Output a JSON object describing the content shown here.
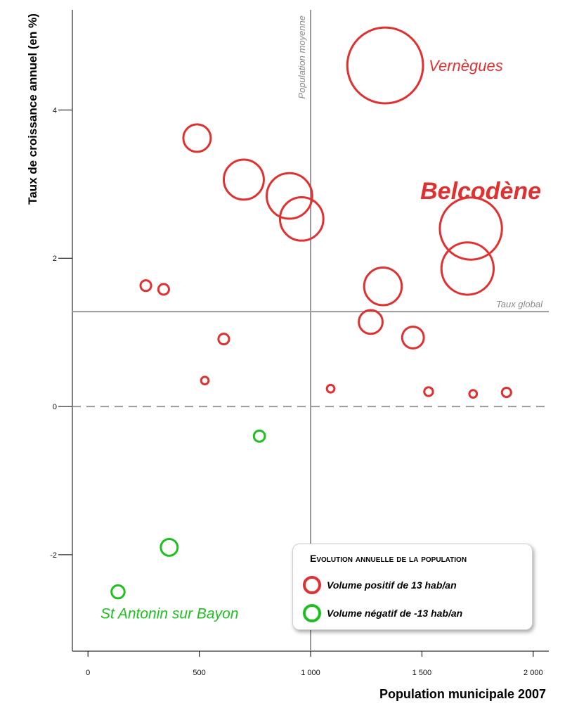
{
  "chart_data": {
    "type": "scatter",
    "title": "",
    "xlabel": "Population municipale 2007",
    "ylabel": "Taux de croissance annuel (en %)",
    "xlim": [
      -70,
      2070
    ],
    "ylim": [
      -3.3,
      5.35
    ],
    "xticks": [
      0,
      500,
      1000,
      1500,
      2000
    ],
    "xtick_labels": [
      "0",
      "500",
      "1 000",
      "1 500",
      "2 000"
    ],
    "yticks": [
      -2,
      0,
      2,
      4
    ],
    "ytick_labels": [
      "-2",
      "0",
      "2",
      "4"
    ],
    "grid": false,
    "reference_lines": {
      "mean_population": {
        "x": 1000,
        "label": "Population moyenne"
      },
      "global_rate": {
        "y": 1.28,
        "label": "Taux global"
      },
      "zero_line": {
        "y": 0
      }
    },
    "points": [
      {
        "x": 1335,
        "y": 4.6,
        "volume": 61,
        "sign": "positive",
        "label": "Vernègues"
      },
      {
        "x": 1720,
        "y": 2.4,
        "volume": 41,
        "sign": "positive",
        "label": "Belcodène"
      },
      {
        "x": 1705,
        "y": 1.86,
        "volume": 29,
        "sign": "positive"
      },
      {
        "x": 490,
        "y": 3.62,
        "volume": 8,
        "sign": "positive"
      },
      {
        "x": 700,
        "y": 3.06,
        "volume": 17,
        "sign": "positive"
      },
      {
        "x": 905,
        "y": 2.84,
        "volume": 22,
        "sign": "positive"
      },
      {
        "x": 960,
        "y": 2.53,
        "volume": 20,
        "sign": "positive"
      },
      {
        "x": 1325,
        "y": 1.62,
        "volume": 15,
        "sign": "positive"
      },
      {
        "x": 1270,
        "y": 1.14,
        "volume": 6,
        "sign": "positive"
      },
      {
        "x": 1460,
        "y": 0.93,
        "volume": 5,
        "sign": "positive"
      },
      {
        "x": 260,
        "y": 1.63,
        "volume": 1.2,
        "sign": "positive"
      },
      {
        "x": 340,
        "y": 1.58,
        "volume": 1.2,
        "sign": "positive"
      },
      {
        "x": 610,
        "y": 0.91,
        "volume": 1.2,
        "sign": "positive"
      },
      {
        "x": 525,
        "y": 0.35,
        "volume": 0.6,
        "sign": "positive"
      },
      {
        "x": 1090,
        "y": 0.24,
        "volume": 0.6,
        "sign": "positive"
      },
      {
        "x": 1530,
        "y": 0.2,
        "volume": 0.8,
        "sign": "positive"
      },
      {
        "x": 1730,
        "y": 0.17,
        "volume": 0.6,
        "sign": "positive"
      },
      {
        "x": 1880,
        "y": 0.19,
        "volume": 0.9,
        "sign": "positive"
      },
      {
        "x": 770,
        "y": -0.4,
        "volume": 1.3,
        "sign": "negative"
      },
      {
        "x": 365,
        "y": -1.9,
        "volume": 3,
        "sign": "negative"
      },
      {
        "x": 135,
        "y": -2.5,
        "volume": 1.8,
        "sign": "negative",
        "label": "St Antonin sur Bayon"
      }
    ],
    "legend": {
      "title": "Evolution annuelle de la population",
      "entries": [
        {
          "label": "Volume positif de 13 hab/an",
          "color": "#e03030"
        },
        {
          "label": "Volume négatif de -13 hab/an",
          "color": "#1fbf1f"
        }
      ],
      "placement": "bottom-right"
    },
    "colors": {
      "positive": "#e03030",
      "negative": "#1fbf1f",
      "reference": "#9a9a9a"
    }
  }
}
